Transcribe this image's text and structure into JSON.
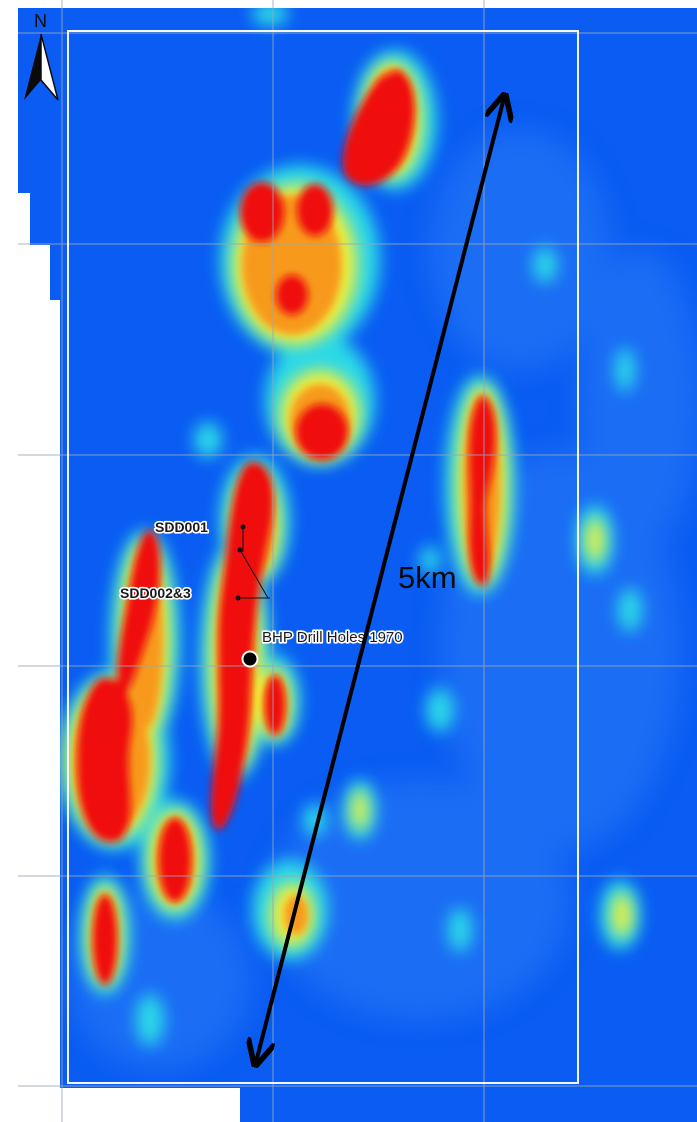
{
  "map": {
    "north_label": "N",
    "scale_label": "5km",
    "labels": {
      "sdd001": "SDD001",
      "sdd002": "SDD002&3",
      "bhp": "BHP Drill Holes 1970"
    },
    "colors": {
      "background": "#0a5cf2",
      "low": "#1e6bf5",
      "cyan": "#2ad9e8",
      "yellow": "#f2f03a",
      "orange": "#f79a1e",
      "red": "#ef0b0b",
      "grid": "#9aa6b8",
      "frame": "#f4f6fb",
      "arrow": "#000000"
    }
  }
}
